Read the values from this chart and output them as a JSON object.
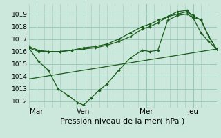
{
  "title": "Pression niveau de la mer( hPa )",
  "bg_color": "#cce8dc",
  "grid_color": "#99ccbb",
  "line_color": "#1a5c1a",
  "xlim": [
    0,
    96
  ],
  "ylim": [
    1011.5,
    1019.8
  ],
  "yticks": [
    1012,
    1013,
    1014,
    1015,
    1016,
    1017,
    1018,
    1019
  ],
  "xtick_labels": [
    "Mar",
    "Ven",
    "Mer",
    "Jeu"
  ],
  "xtick_positions": [
    4,
    28,
    60,
    84
  ],
  "vline_positions": [
    4,
    28,
    60,
    84
  ],
  "series1": {
    "x": [
      0,
      5,
      10,
      16,
      22,
      28,
      34,
      40,
      46,
      52,
      58,
      62,
      66,
      71,
      76,
      81,
      84,
      88,
      92,
      96
    ],
    "y": [
      1016.4,
      1016.1,
      1016.0,
      1016.0,
      1016.1,
      1016.2,
      1016.3,
      1016.5,
      1016.8,
      1017.2,
      1017.8,
      1018.0,
      1018.3,
      1018.8,
      1019.0,
      1019.2,
      1018.9,
      1018.5,
      1017.2,
      1016.2
    ]
  },
  "series2": {
    "x": [
      0,
      5,
      10,
      16,
      22,
      28,
      34,
      40,
      46,
      52,
      58,
      62,
      66,
      71,
      76,
      81,
      84,
      88,
      92,
      96
    ],
    "y": [
      1016.3,
      1016.0,
      1016.0,
      1016.0,
      1016.1,
      1016.3,
      1016.4,
      1016.6,
      1017.0,
      1017.5,
      1018.0,
      1018.2,
      1018.5,
      1018.8,
      1019.2,
      1019.3,
      1018.7,
      1017.5,
      1016.8,
      1016.2
    ]
  },
  "series3": {
    "x": [
      0,
      5,
      10,
      15,
      20,
      25,
      28,
      32,
      36,
      40,
      46,
      52,
      58,
      62,
      66,
      71,
      76,
      81,
      84,
      88,
      92,
      96
    ],
    "y": [
      1016.3,
      1015.2,
      1014.5,
      1013.0,
      1012.5,
      1011.9,
      1011.7,
      1012.3,
      1012.9,
      1013.4,
      1014.5,
      1015.5,
      1016.1,
      1016.0,
      1016.1,
      1018.5,
      1018.9,
      1019.0,
      1018.7,
      1018.6,
      1017.2,
      1016.2
    ]
  },
  "series4": {
    "x": [
      0,
      96
    ],
    "y": [
      1013.8,
      1016.2
    ]
  },
  "ytick_fontsize": 6.5,
  "xtick_fontsize": 7.5,
  "xlabel_fontsize": 8
}
